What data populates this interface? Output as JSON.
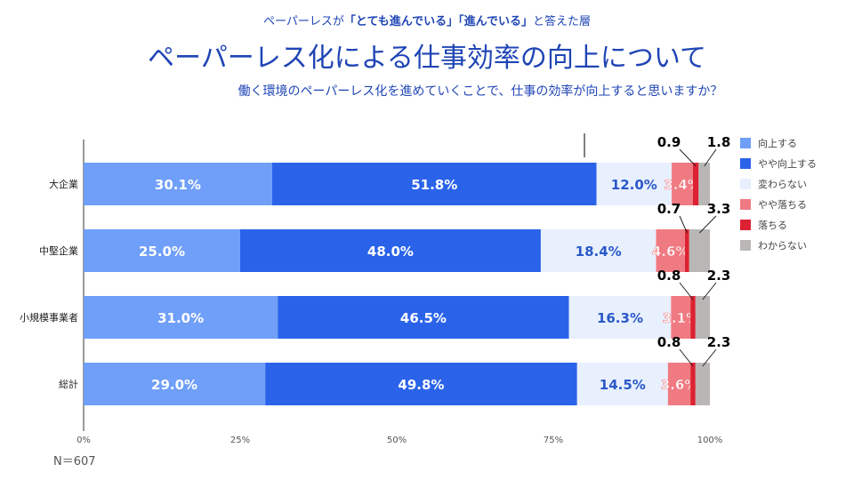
{
  "header": {
    "supertitle_pre": "ペーパーレスが",
    "supertitle_bold": "「とても進んでいる」「進んでいる」",
    "supertitle_post": "と答えた層",
    "title": "ペーパーレス化による仕事効率の向上について",
    "subtitle": "働く環境のペーパーレス化を進めていくことで、仕事の効率が向上すると思いますか？"
  },
  "note": "N＝607",
  "chart_data": {
    "type": "bar",
    "orientation": "horizontal",
    "stacked": true,
    "xlim": [
      0,
      100
    ],
    "xticks": [
      "0%",
      "25%",
      "50%",
      "75%",
      "100%"
    ],
    "categories": [
      "大企業",
      "中堅企業",
      "小規模事業者",
      "総計"
    ],
    "series": [
      {
        "name": "向上する",
        "color": "#6f9ff8",
        "values": [
          30.1,
          25.0,
          31.0,
          29.0
        ],
        "labels": [
          "30.1%",
          "25.0%",
          "31.0%",
          "29.0%"
        ]
      },
      {
        "name": "やや向上する",
        "color": "#2a63ea",
        "values": [
          51.8,
          48.0,
          46.5,
          49.8
        ],
        "labels": [
          "51.8%",
          "48.0%",
          "46.5%",
          "49.8%"
        ]
      },
      {
        "name": "変わらない",
        "color": "#e8f0fe",
        "values": [
          12.0,
          18.4,
          16.3,
          14.5
        ],
        "labels": [
          "12.0%",
          "18.4%",
          "16.3%",
          "14.5%"
        ]
      },
      {
        "name": "やや落ちる",
        "color": "#f07a82",
        "values": [
          3.4,
          4.6,
          3.1,
          3.6
        ],
        "labels": [
          "3.4%",
          "4.6%",
          "3.1%",
          "3.6%"
        ]
      },
      {
        "name": "落ちる",
        "color": "#dc2232",
        "values": [
          0.9,
          0.7,
          0.8,
          0.8
        ],
        "labels": [
          "0.9",
          "0.7",
          "0.8",
          "0.8"
        ]
      },
      {
        "name": "わからない",
        "color": "#bab6b6",
        "values": [
          1.8,
          3.3,
          2.3,
          2.3
        ],
        "labels": [
          "1.8",
          "3.3",
          "2.3",
          "2.3"
        ]
      }
    ],
    "legend_position": "right",
    "grid": false
  }
}
